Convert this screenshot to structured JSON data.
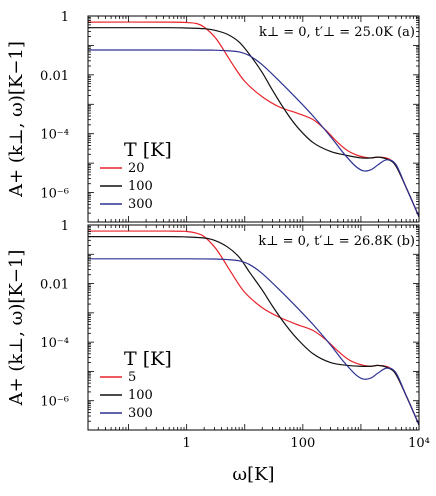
{
  "xlabel": "ω[K]",
  "chart_data": [
    {
      "type": "line",
      "annotation": "k⊥ = 0, t′⊥ = 25.0K (a)",
      "ylabel": "A+ (k⊥, ω)[K−1]",
      "xscale": "log",
      "yscale": "log",
      "xlim": [
        0.02,
        10000
      ],
      "ylim": [
        1e-07,
        1
      ],
      "x_ticks": [
        "1",
        "100",
        "10⁴"
      ],
      "y_ticks": [
        "1",
        "0.01",
        "10⁻⁴",
        "10⁻⁶"
      ],
      "legend_title": "T [K]",
      "legend_position": "left",
      "series": [
        {
          "name": "20",
          "color": "#e8232a",
          "x": [
            0.02,
            0.5,
            1.0,
            1.5,
            2.0,
            3.0,
            4.0,
            6.0,
            10,
            20,
            40,
            80,
            150,
            250,
            400,
            600,
            900,
            1400,
            2000,
            3000,
            4000,
            6000,
            10000
          ],
          "y": [
            0.62,
            0.62,
            0.6,
            0.55,
            0.42,
            0.2,
            0.09,
            0.025,
            0.006,
            0.0018,
            0.0008,
            0.0005,
            0.0003,
            0.00013,
            5e-05,
            2.6e-05,
            1.8e-05,
            1.5e-05,
            1.6e-05,
            1.4e-05,
            8e-06,
            1.5e-06,
            1.5e-07
          ]
        },
        {
          "name": "100",
          "color": "#111111",
          "x": [
            0.02,
            0.5,
            1.0,
            2.0,
            3.0,
            5.0,
            8.0,
            12,
            20,
            30,
            50,
            80,
            150,
            300,
            600,
            1000,
            1500,
            2000,
            3000,
            4000,
            6000,
            10000
          ],
          "y": [
            0.4,
            0.4,
            0.39,
            0.37,
            0.33,
            0.24,
            0.13,
            0.05,
            0.012,
            0.003,
            0.0006,
            0.00017,
            5e-05,
            2.5e-05,
            1.8e-05,
            1.5e-05,
            1.5e-05,
            1.6e-05,
            1.3e-05,
            8e-06,
            1.5e-06,
            1.5e-07
          ]
        },
        {
          "name": "300",
          "color": "#2e3192",
          "x": [
            0.02,
            1.0,
            3.0,
            5.0,
            8.0,
            12,
            20,
            40,
            80,
            150,
            300,
            500,
            800,
            1100,
            1500,
            2000,
            2800,
            4000,
            6000,
            10000
          ],
          "y": [
            0.07,
            0.07,
            0.069,
            0.066,
            0.06,
            0.045,
            0.022,
            0.006,
            0.0015,
            0.0004,
            8e-05,
            2.2e-05,
            8e-06,
            5.5e-06,
            6e-06,
            9e-06,
            1.3e-05,
            9e-06,
            1.5e-06,
            1.5e-07
          ]
        }
      ]
    },
    {
      "type": "line",
      "annotation": "k⊥ = 0, t′⊥ = 26.8K (b)",
      "ylabel": "A+ (k⊥, ω)[K−1]",
      "xscale": "log",
      "yscale": "log",
      "xlim": [
        0.02,
        10000
      ],
      "ylim": [
        1e-07,
        1
      ],
      "x_ticks": [
        "1",
        "100",
        "10⁴"
      ],
      "y_ticks": [
        "1",
        "0.01",
        "10⁻⁴",
        "10⁻⁶"
      ],
      "legend_title": "T [K]",
      "legend_position": "left",
      "series": [
        {
          "name": "5",
          "color": "#e8232a",
          "x": [
            0.02,
            0.5,
            1.0,
            1.5,
            2.0,
            3.0,
            4.0,
            6.0,
            10,
            20,
            40,
            80,
            150,
            250,
            400,
            600,
            900,
            1400,
            2000,
            3000,
            4000,
            6000,
            10000
          ],
          "y": [
            0.62,
            0.62,
            0.6,
            0.52,
            0.4,
            0.18,
            0.08,
            0.022,
            0.005,
            0.0015,
            0.0007,
            0.0004,
            0.00025,
            0.00012,
            5e-05,
            2.6e-05,
            1.8e-05,
            1.5e-05,
            1.6e-05,
            1.4e-05,
            8e-06,
            1.5e-06,
            1.5e-07
          ]
        },
        {
          "name": "100",
          "color": "#111111",
          "x": [
            0.02,
            0.5,
            1.0,
            2.0,
            3.0,
            5.0,
            8.0,
            12,
            20,
            30,
            50,
            80,
            150,
            300,
            600,
            1000,
            1500,
            2000,
            3000,
            4000,
            6000,
            10000
          ],
          "y": [
            0.4,
            0.4,
            0.39,
            0.36,
            0.3,
            0.18,
            0.08,
            0.025,
            0.006,
            0.0017,
            0.0004,
            0.00013,
            4e-05,
            2e-05,
            1.6e-05,
            1.5e-05,
            1.5e-05,
            1.6e-05,
            1.3e-05,
            8e-06,
            1.5e-06,
            1.5e-07
          ]
        },
        {
          "name": "300",
          "color": "#2e3192",
          "x": [
            0.02,
            1.0,
            3.0,
            5.0,
            8.0,
            12,
            20,
            40,
            80,
            150,
            300,
            500,
            800,
            1100,
            1500,
            2000,
            2800,
            4000,
            6000,
            10000
          ],
          "y": [
            0.07,
            0.07,
            0.069,
            0.066,
            0.06,
            0.045,
            0.022,
            0.006,
            0.0015,
            0.0004,
            8e-05,
            2.2e-05,
            8e-06,
            5.5e-06,
            6e-06,
            9e-06,
            1.3e-05,
            9e-06,
            1.5e-06,
            1.5e-07
          ]
        }
      ]
    }
  ]
}
